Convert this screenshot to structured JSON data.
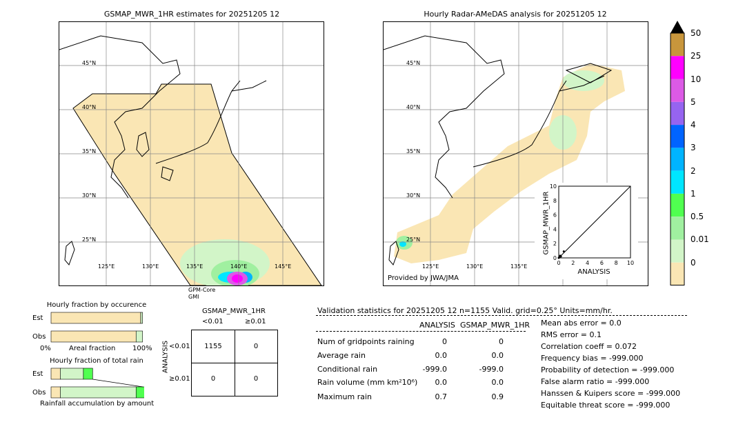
{
  "left_map": {
    "title": "GSMAP_MWR_1HR estimates for 20251205 12",
    "lat_labels": [
      "45°N",
      "40°N",
      "35°N",
      "30°N",
      "25°N"
    ],
    "lon_labels": [
      "125°E",
      "130°E",
      "135°E",
      "140°E",
      "145°E"
    ],
    "satellite_label_1": "GPM-Core",
    "satellite_label_2": "GMI"
  },
  "right_map": {
    "title": "Hourly Radar-AMeDAS analysis for 20251205 12",
    "lat_labels": [
      "45°N",
      "40°N",
      "35°N",
      "30°N",
      "25°N"
    ],
    "lon_labels": [
      "125°E",
      "130°E",
      "135°E"
    ],
    "provider": "Provided by JWA/JMA"
  },
  "colorbar": {
    "labels": [
      "50",
      "25",
      "10",
      "5",
      "4",
      "3",
      "2",
      "1",
      "0.5",
      "0.01",
      "0"
    ],
    "colors": [
      "#c8963c",
      "#ff00ff",
      "#dc5ae6",
      "#9664f0",
      "#0064ff",
      "#00b4ff",
      "#00e6ff",
      "#50ff50",
      "#a0f0a0",
      "#d2f5c8",
      "#fae6b4"
    ]
  },
  "chart_data": [
    {
      "type": "scatter",
      "title": "",
      "xlabel": "ANALYSIS",
      "ylabel": "GSMAP_MWR_1HR",
      "xlim": [
        0,
        10
      ],
      "ylim": [
        0,
        10
      ],
      "ticks": [
        "0",
        "2",
        "4",
        "6",
        "8",
        "10"
      ],
      "points": [
        [
          0,
          0
        ],
        [
          0.1,
          0.1
        ],
        [
          0.2,
          0.3
        ],
        [
          0.3,
          0.2
        ],
        [
          0.7,
          0.9
        ]
      ],
      "reference_line": [
        [
          0,
          0
        ],
        [
          10,
          10
        ]
      ]
    },
    {
      "type": "bar",
      "title": "Hourly fraction by occurence",
      "categories": [
        "Est",
        "Obs"
      ],
      "xlabel": "Areal fraction",
      "x_left": "0%",
      "x_right": "100%",
      "series": [
        {
          "values": [
            0.97,
            0.92
          ],
          "color": "#fae6b4"
        },
        {
          "values": [
            0.02,
            0.07
          ],
          "color": "#d2f5c8"
        }
      ]
    },
    {
      "type": "bar",
      "title": "Hourly fraction of total rain",
      "categories": [
        "Est",
        "Obs"
      ],
      "xlabel": "Rainfall accumulation by amount",
      "series": [
        {
          "values": [
            0.1,
            0.1
          ],
          "color": "#fae6b4"
        },
        {
          "values": [
            0.25,
            0.82
          ],
          "color": "#d2f5c8"
        },
        {
          "values": [
            0.1,
            0.15
          ],
          "color": "#50ff50"
        }
      ]
    }
  ],
  "contingency": {
    "title": "GSMAP_MWR_1HR",
    "col_lt": "<0.01",
    "col_ge": "≥0.01",
    "row_lt": "<0.01",
    "row_ge": "≥0.01",
    "side_label": "ANALYSIS",
    "cells": [
      "1155",
      "0",
      "0",
      "0"
    ]
  },
  "validation": {
    "header": "Validation statistics for 20251205 12  n=1155 Valid. grid=0.25° Units=mm/hr.",
    "col_analysis": "ANALYSIS",
    "col_gsmap": "GSMAP_MWR_1HR",
    "rows": [
      {
        "label": "Num of gridpoints raining",
        "analysis": "0",
        "gsmap": "0"
      },
      {
        "label": "Average rain",
        "analysis": "0.0",
        "gsmap": "0.0"
      },
      {
        "label": "Conditional rain",
        "analysis": "-999.0",
        "gsmap": "-999.0"
      },
      {
        "label": "Rain volume (mm km²10⁶)",
        "analysis": "0.0",
        "gsmap": "0.0"
      },
      {
        "label": "Maximum rain",
        "analysis": "0.7",
        "gsmap": "0.9"
      }
    ],
    "scores": [
      "Mean abs error =    0.0",
      "RMS error =    0.1",
      "Correlation coeff =  0.072",
      "Frequency bias = -999.000",
      "Probability of detection = -999.000",
      "False alarm ratio = -999.000",
      "Hanssen & Kuipers score = -999.000",
      "Equitable threat score = -999.000"
    ]
  }
}
